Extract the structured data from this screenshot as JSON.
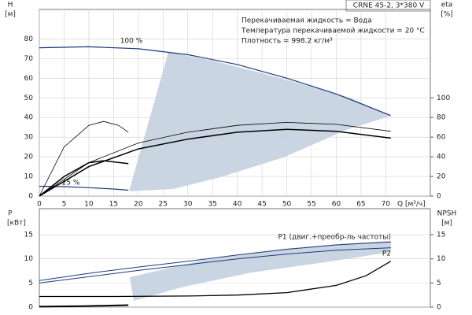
{
  "chart_data": [
    {
      "type": "line",
      "title": "CRNE 45-2, 3*380 V",
      "ylabel": "H",
      "yunit": "[м]",
      "y2label": "eta",
      "y2unit": "[%]",
      "xlabel": "Q [м³/ч]",
      "xlim": [
        0,
        79
      ],
      "xticks": [
        0,
        5,
        10,
        15,
        20,
        25,
        30,
        35,
        40,
        45,
        50,
        55,
        60,
        65,
        70
      ],
      "ylim": [
        0,
        95
      ],
      "yticks": [
        0,
        10,
        20,
        30,
        40,
        50,
        60,
        70,
        80
      ],
      "y2lim": [
        0,
        190
      ],
      "y2ticks": [
        0,
        20,
        40,
        60,
        80,
        100
      ],
      "grid": true,
      "annotations": [
        "100 %",
        "25 %",
        "Перекачиваемая жидкость = Вода",
        "Температура перекачиваемой жидкости = 20 °C",
        "Плотность = 998.2 кг/м³"
      ],
      "series": [
        {
          "color": "#1f3a78",
          "line_width": 1.2,
          "x": [
            0,
            10,
            20,
            30,
            40,
            50,
            60,
            71
          ],
          "values": [
            75.5,
            76,
            75,
            72,
            67,
            60,
            52,
            41
          ]
        },
        {
          "color": "#1f3a78",
          "line_width": 1.2,
          "x": [
            0,
            5,
            10,
            15,
            18
          ],
          "values": [
            5,
            4.8,
            4.3,
            3.6,
            3
          ]
        },
        {
          "color": "#000000",
          "line_width": 1.5,
          "axis": "y2",
          "x": [
            0,
            10,
            20,
            30,
            40,
            50,
            60,
            71
          ],
          "values": [
            0,
            30,
            48,
            58,
            65,
            68,
            66,
            59
          ]
        },
        {
          "color": "#000000",
          "line_width": 0.8,
          "axis": "y2",
          "x": [
            0,
            10,
            20,
            30,
            40,
            50,
            60,
            71
          ],
          "values": [
            0,
            34,
            54,
            65,
            72,
            75,
            73,
            66
          ]
        },
        {
          "color": "#000000",
          "line_width": 0.8,
          "axis": "y2",
          "x": [
            0,
            5,
            10,
            13,
            16,
            18
          ],
          "values": [
            0,
            50,
            72,
            76,
            72,
            65
          ]
        },
        {
          "color": "#000000",
          "line_width": 1.5,
          "axis": "y2",
          "x": [
            0,
            5,
            10,
            13,
            18
          ],
          "values": [
            0,
            20,
            34,
            36,
            33
          ]
        }
      ]
    },
    {
      "type": "line",
      "ylabel": "P",
      "yunit": "[кВт]",
      "y2label": "NPSH",
      "y2unit": "[м]",
      "xlim": [
        0,
        79
      ],
      "ylim": [
        0,
        20.4
      ],
      "yticks": [
        0,
        5,
        10,
        15
      ],
      "y2lim": [
        0,
        20.4
      ],
      "y2ticks": [
        0,
        5,
        10,
        15
      ],
      "grid": true,
      "series": [
        {
          "name": "P1 (двиг.+преобр-ль частоты)",
          "color": "#1f3a78",
          "line_width": 1,
          "x": [
            0,
            10,
            20,
            30,
            40,
            50,
            60,
            71
          ],
          "values": [
            5.5,
            7,
            8.3,
            9.5,
            10.8,
            12,
            12.9,
            13.5
          ]
        },
        {
          "name": "P2",
          "color": "#1f3a78",
          "line_width": 1,
          "x": [
            0,
            10,
            20,
            30,
            40,
            50,
            60,
            71
          ],
          "values": [
            5,
            6.3,
            7.6,
            8.8,
            10,
            11,
            11.8,
            12.3
          ]
        },
        {
          "color": "#000000",
          "line_width": 1.3,
          "axis": "y2",
          "x": [
            0,
            15,
            30,
            40,
            50,
            60,
            66,
            71
          ],
          "values": [
            2.2,
            2.2,
            2.3,
            2.5,
            3,
            4.5,
            6.5,
            9.5
          ]
        },
        {
          "color": "#000000",
          "line_width": 2,
          "x": [
            0,
            9,
            18
          ],
          "values": [
            0.1,
            0.2,
            0.4
          ]
        }
      ]
    }
  ]
}
